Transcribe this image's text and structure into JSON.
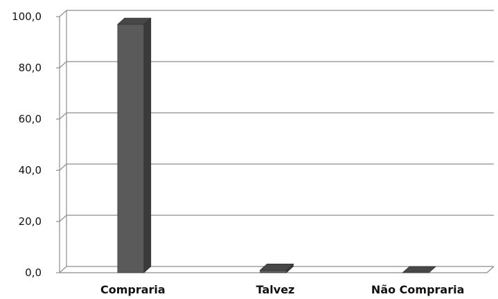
{
  "chart_data": {
    "type": "bar",
    "categories": [
      "Compraria",
      "Talvez",
      "Não Compraria"
    ],
    "values": [
      97.0,
      1.0,
      0.0
    ],
    "ylim": [
      0,
      100
    ],
    "yticks": [
      "0,0",
      "20,0",
      "40,0",
      "60,0",
      "80,0",
      "100,0"
    ],
    "grid": true,
    "style": "3d-column",
    "colors": {
      "bar_front": "#5a5a5a",
      "bar_side": "#3a3a3a",
      "bar_top": "#474747",
      "grid": "#8c8c8c"
    }
  }
}
